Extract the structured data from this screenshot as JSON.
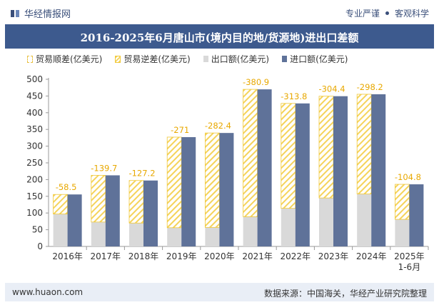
{
  "brand": {
    "name": "华经情报网",
    "tagline_1": "专业严谨",
    "tagline_2": "客观科学"
  },
  "colors": {
    "title_band": "#3d5a8e",
    "import": "#5f7299",
    "export": "#d9d9d9",
    "deficit": "#f5d35a",
    "label": "#e8a800"
  },
  "legend": {
    "surplus": "贸易顺差(亿美元)",
    "deficit": "贸易逆差(亿美元)",
    "export": "出口额(亿美元)",
    "import": "进口额(亿美元)"
  },
  "footer": {
    "website": "www.huaon.com",
    "source": "数据来源：中国海关，华经产业研究院整理"
  },
  "chart_data": {
    "type": "bar",
    "title": "2016-2025年6月唐山市(境内目的地/货源地)进出口差额",
    "categories": [
      "2016年",
      "2017年",
      "2018年",
      "2019年",
      "2020年",
      "2021年",
      "2022年",
      "2023年",
      "2024年",
      "2025年\n1-6月"
    ],
    "series": [
      {
        "name": "出口额(亿美元)",
        "values": [
          97,
          73,
          70,
          56,
          57,
          89,
          114,
          145,
          157,
          81
        ]
      },
      {
        "name": "进口额(亿美元)",
        "values": [
          155.5,
          212.7,
          197.2,
          327,
          339.4,
          469.9,
          427.8,
          449.4,
          455.2,
          185.8
        ]
      },
      {
        "name": "贸易逆差(亿美元)",
        "values": [
          -58.5,
          -139.7,
          -127.2,
          -271,
          -282.4,
          -380.9,
          -313.8,
          -304.4,
          -298.2,
          -104.8
        ]
      }
    ],
    "data_labels": [
      "-58.5",
      "-139.7",
      "-127.2",
      "-271",
      "-282.4",
      "-380.9",
      "-313.8",
      "-304.4",
      "-298.2",
      "-104.8"
    ],
    "ylim": [
      0,
      500
    ],
    "yticks": [
      0,
      50,
      100,
      150,
      200,
      250,
      300,
      350,
      400,
      450,
      500
    ],
    "grid": false,
    "legend_position": "top"
  }
}
